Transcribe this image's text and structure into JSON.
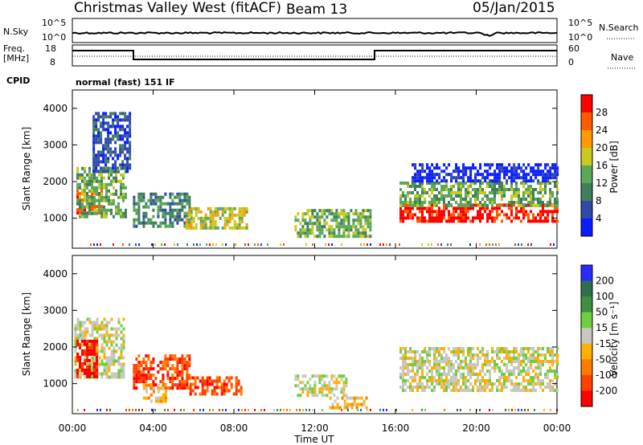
{
  "header": {
    "station": "Christmas Valley West (fitACF)",
    "beam": "Beam 13",
    "date": "05/Jan/2015"
  },
  "strip": {
    "nsky_label": "N.Sky",
    "nsky_ticks": [
      "10^5",
      "10^0"
    ],
    "nsearch_label": "N.Search",
    "nsearch_ticks": [
      "10^5",
      "10^0"
    ],
    "freq_label_1": "Freq.",
    "freq_label_2": "[MHz]",
    "freq_ticks": [
      "18",
      "8"
    ],
    "nave_label": "Nave",
    "nave_ticks": [
      "60",
      "0"
    ],
    "cpid_label": "CPID",
    "cpid_value": "normal (fast) 151 IF"
  },
  "colors": {
    "power": [
      "#0a1cff",
      "#2f4aa8",
      "#3f7f5e",
      "#5aa85a",
      "#c9c91e",
      "#ff9a00",
      "#ff5a00",
      "#ff0000"
    ],
    "velocity": [
      "#2a2aff",
      "#2e6f4e",
      "#3f8f3f",
      "#6fcf3f",
      "#c8c8c0",
      "#ffb000",
      "#ff7a00",
      "#ff4000",
      "#ff0000"
    ]
  },
  "chart_data": [
    {
      "type": "heatmap",
      "name": "power",
      "xlabel": "Time UT",
      "ylabel": "Slant Range [km]",
      "x_ticks": [
        "00:00",
        "04:00",
        "08:00",
        "12:00",
        "16:00",
        "20:00",
        "00:00"
      ],
      "y_ticks": [
        "1000",
        "2000",
        "3000",
        "4000"
      ],
      "xlim": [
        0,
        24
      ],
      "ylim": [
        180,
        4500
      ],
      "colorbar_label": "Power [dB]",
      "colorbar_ticks": [
        "4",
        "8",
        "12",
        "16",
        "20",
        "24",
        "28"
      ],
      "regions": [
        {
          "t0": 0.2,
          "t1": 1.4,
          "r0": 1150,
          "r1": 1800,
          "level": 7
        },
        {
          "t0": 0.2,
          "t1": 2.6,
          "r0": 1000,
          "r1": 2400,
          "level": 4
        },
        {
          "t0": 1.0,
          "t1": 2.8,
          "r0": 2300,
          "r1": 3900,
          "level": 2
        },
        {
          "t0": 3.0,
          "t1": 5.8,
          "r0": 800,
          "r1": 1700,
          "level": 3
        },
        {
          "t0": 5.6,
          "t1": 8.6,
          "r0": 750,
          "r1": 1300,
          "level": 5
        },
        {
          "t0": 11.0,
          "t1": 14.8,
          "r0": 500,
          "r1": 1250,
          "level": 4
        },
        {
          "t0": 16.2,
          "t1": 24.0,
          "r0": 900,
          "r1": 1400,
          "level": 8
        },
        {
          "t0": 16.2,
          "t1": 24.0,
          "r0": 1300,
          "r1": 2000,
          "level": 4
        },
        {
          "t0": 16.8,
          "t1": 24.0,
          "r0": 2000,
          "r1": 2500,
          "level": 1
        }
      ]
    },
    {
      "type": "heatmap",
      "name": "velocity",
      "xlabel": "Time UT",
      "ylabel": "Slant Range [km]",
      "x_ticks": [
        "00:00",
        "04:00",
        "08:00",
        "12:00",
        "16:00",
        "20:00",
        "00:00"
      ],
      "y_ticks": [
        "1000",
        "2000",
        "3000",
        "4000"
      ],
      "xlim": [
        0,
        24
      ],
      "ylim": [
        180,
        4500
      ],
      "colorbar_label": "Velocity [m s⁻¹]",
      "colorbar_ticks": [
        "200",
        "100",
        "50",
        "15",
        "-15",
        "-50",
        "-100",
        "-200"
      ],
      "regions": [
        {
          "t0": 0.1,
          "t1": 2.6,
          "r0": 1200,
          "r1": 2800,
          "level": 5
        },
        {
          "t0": 0.2,
          "t1": 1.2,
          "r0": 1200,
          "r1": 2200,
          "level": 9
        },
        {
          "t0": 3.0,
          "t1": 5.8,
          "r0": 850,
          "r1": 1800,
          "level": 8
        },
        {
          "t0": 3.5,
          "t1": 4.6,
          "r0": 500,
          "r1": 1000,
          "level": 6
        },
        {
          "t0": 5.8,
          "t1": 8.4,
          "r0": 750,
          "r1": 1200,
          "level": 8
        },
        {
          "t0": 11.0,
          "t1": 13.6,
          "r0": 700,
          "r1": 1250,
          "level": 5
        },
        {
          "t0": 12.6,
          "t1": 14.6,
          "r0": 350,
          "r1": 650,
          "level": 6
        },
        {
          "t0": 16.2,
          "t1": 24.0,
          "r0": 800,
          "r1": 2000,
          "level": 5
        }
      ]
    }
  ]
}
